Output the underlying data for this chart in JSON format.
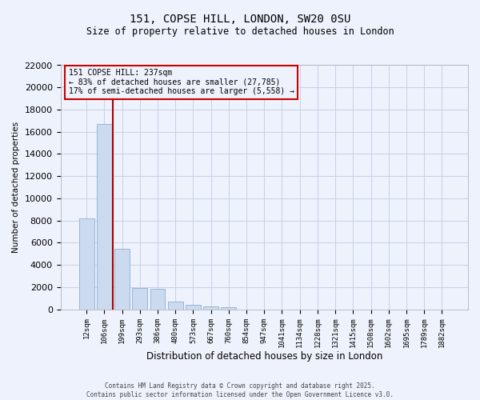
{
  "title_line1": "151, COPSE HILL, LONDON, SW20 0SU",
  "title_line2": "Size of property relative to detached houses in London",
  "xlabel": "Distribution of detached houses by size in London",
  "ylabel": "Number of detached properties",
  "categories": [
    "12sqm",
    "106sqm",
    "199sqm",
    "293sqm",
    "386sqm",
    "480sqm",
    "573sqm",
    "667sqm",
    "760sqm",
    "854sqm",
    "947sqm",
    "1041sqm",
    "1134sqm",
    "1228sqm",
    "1321sqm",
    "1415sqm",
    "1508sqm",
    "1602sqm",
    "1695sqm",
    "1789sqm",
    "1882sqm"
  ],
  "values": [
    8200,
    16700,
    5450,
    1900,
    1870,
    680,
    380,
    260,
    170,
    0,
    0,
    0,
    0,
    0,
    0,
    0,
    0,
    0,
    0,
    0,
    0
  ],
  "bar_color": "#ccdaf0",
  "bar_edge_color": "#8aafd0",
  "vline_color": "#aa0000",
  "ylim_max": 22000,
  "yticks": [
    0,
    2000,
    4000,
    6000,
    8000,
    10000,
    12000,
    14000,
    16000,
    18000,
    20000,
    22000
  ],
  "annotation_title": "151 COPSE HILL: 237sqm",
  "annotation_line1": "← 83% of detached houses are smaller (27,785)",
  "annotation_line2": "17% of semi-detached houses are larger (5,558) →",
  "annotation_box_edgecolor": "#cc0000",
  "bg_color": "#eef2fc",
  "grid_color": "#c8d0e8",
  "footer_line1": "Contains HM Land Registry data © Crown copyright and database right 2025.",
  "footer_line2": "Contains public sector information licensed under the Open Government Licence v3.0."
}
